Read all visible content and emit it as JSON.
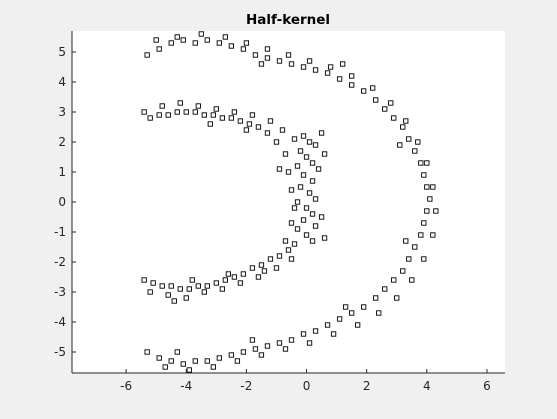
{
  "chart_data": {
    "type": "scatter",
    "title": "Half-kernel",
    "xlabel": "",
    "ylabel": "",
    "xlim": [
      -7.8,
      6.6
    ],
    "ylim": [
      -5.7,
      5.7
    ],
    "x_ticks": [
      -6,
      -4,
      -2,
      0,
      2,
      4,
      6
    ],
    "y_ticks": [
      -5,
      -4,
      -3,
      -2,
      -1,
      0,
      1,
      2,
      3,
      4,
      5
    ],
    "grid": false,
    "legend": "none",
    "marker": "square",
    "colors": {
      "figure_background": "#f0f0f0",
      "axes_background": "#ffffff",
      "axis": "#262626",
      "marker_edge": "#000000"
    },
    "series": [
      {
        "description_key": "inner-half-kernel",
        "points": [
          [
            -0.1,
            2.2
          ],
          [
            0.1,
            2.0
          ],
          [
            0.3,
            1.9
          ],
          [
            -0.4,
            2.1
          ],
          [
            0.5,
            2.3
          ],
          [
            -0.2,
            1.7
          ],
          [
            0.0,
            1.5
          ],
          [
            0.2,
            1.3
          ],
          [
            -0.3,
            1.2
          ],
          [
            0.4,
            1.1
          ],
          [
            -0.1,
            0.9
          ],
          [
            0.2,
            0.7
          ],
          [
            -0.2,
            0.5
          ],
          [
            0.1,
            0.3
          ],
          [
            0.3,
            0.1
          ],
          [
            -0.3,
            0.0
          ],
          [
            0.0,
            -0.2
          ],
          [
            0.2,
            -0.4
          ],
          [
            -0.1,
            -0.6
          ],
          [
            0.3,
            -0.8
          ],
          [
            -0.3,
            -0.9
          ],
          [
            0.0,
            -1.1
          ],
          [
            0.2,
            -1.3
          ],
          [
            -0.4,
            -1.4
          ],
          [
            -0.6,
            -1.6
          ],
          [
            -0.9,
            -1.8
          ],
          [
            -1.2,
            -1.9
          ],
          [
            -1.5,
            -2.1
          ],
          [
            -1.8,
            -2.2
          ],
          [
            -2.1,
            -2.4
          ],
          [
            -2.4,
            -2.5
          ],
          [
            -2.7,
            -2.6
          ],
          [
            -3.0,
            -2.7
          ],
          [
            -3.3,
            -2.8
          ],
          [
            -3.6,
            -2.8
          ],
          [
            -3.9,
            -2.9
          ],
          [
            -4.2,
            -2.9
          ],
          [
            -4.5,
            -2.8
          ],
          [
            -4.8,
            -2.8
          ],
          [
            -5.1,
            -2.7
          ],
          [
            -5.4,
            -2.6
          ],
          [
            -5.2,
            -3.0
          ],
          [
            -4.6,
            -3.1
          ],
          [
            -4.0,
            -3.2
          ],
          [
            -3.4,
            -3.0
          ],
          [
            -2.8,
            -2.9
          ],
          [
            -2.2,
            -2.7
          ],
          [
            -1.6,
            -2.5
          ],
          [
            -1.0,
            -2.2
          ],
          [
            -0.5,
            -1.9
          ],
          [
            -0.7,
            -1.3
          ],
          [
            -0.5,
            -0.7
          ],
          [
            -0.4,
            -0.2
          ],
          [
            -0.5,
            0.4
          ],
          [
            -0.6,
            1.0
          ],
          [
            -0.7,
            1.6
          ],
          [
            -1.0,
            2.0
          ],
          [
            -1.3,
            2.3
          ],
          [
            -1.6,
            2.5
          ],
          [
            -1.9,
            2.6
          ],
          [
            -2.2,
            2.7
          ],
          [
            -2.5,
            2.8
          ],
          [
            -2.8,
            2.8
          ],
          [
            -3.1,
            2.9
          ],
          [
            -3.4,
            2.9
          ],
          [
            -3.7,
            3.0
          ],
          [
            -4.0,
            3.0
          ],
          [
            -4.3,
            3.0
          ],
          [
            -4.6,
            2.9
          ],
          [
            -4.9,
            2.9
          ],
          [
            -5.2,
            2.8
          ],
          [
            -5.4,
            3.0
          ],
          [
            -4.8,
            3.2
          ],
          [
            -4.2,
            3.3
          ],
          [
            -3.6,
            3.2
          ],
          [
            -3.0,
            3.1
          ],
          [
            -2.4,
            3.0
          ],
          [
            -1.8,
            2.9
          ],
          [
            -1.2,
            2.7
          ],
          [
            -0.8,
            2.4
          ],
          [
            -0.9,
            1.1
          ],
          [
            0.6,
            1.6
          ],
          [
            0.5,
            -0.5
          ],
          [
            0.6,
            -1.2
          ],
          [
            -1.4,
            -2.3
          ],
          [
            -2.6,
            -2.4
          ],
          [
            -3.8,
            -2.6
          ],
          [
            -4.4,
            -3.3
          ],
          [
            -2.0,
            2.4
          ],
          [
            -3.2,
            2.6
          ]
        ]
      },
      {
        "description_key": "outer-half-kernel",
        "points": [
          [
            -5.3,
            4.9
          ],
          [
            -4.9,
            5.1
          ],
          [
            -4.5,
            5.3
          ],
          [
            -4.1,
            5.4
          ],
          [
            -3.7,
            5.3
          ],
          [
            -3.3,
            5.4
          ],
          [
            -2.9,
            5.3
          ],
          [
            -2.5,
            5.2
          ],
          [
            -2.1,
            5.1
          ],
          [
            -1.7,
            4.9
          ],
          [
            -1.3,
            4.8
          ],
          [
            -0.9,
            4.7
          ],
          [
            -0.5,
            4.6
          ],
          [
            -0.1,
            4.5
          ],
          [
            0.3,
            4.4
          ],
          [
            0.7,
            4.3
          ],
          [
            1.1,
            4.1
          ],
          [
            1.5,
            3.9
          ],
          [
            1.9,
            3.7
          ],
          [
            2.3,
            3.4
          ],
          [
            2.6,
            3.1
          ],
          [
            2.9,
            2.8
          ],
          [
            3.2,
            2.5
          ],
          [
            3.4,
            2.1
          ],
          [
            3.6,
            1.7
          ],
          [
            3.8,
            1.3
          ],
          [
            3.9,
            0.9
          ],
          [
            4.0,
            0.5
          ],
          [
            4.1,
            0.1
          ],
          [
            4.0,
            -0.3
          ],
          [
            3.9,
            -0.7
          ],
          [
            3.8,
            -1.1
          ],
          [
            3.6,
            -1.5
          ],
          [
            3.4,
            -1.9
          ],
          [
            3.2,
            -2.3
          ],
          [
            2.9,
            -2.6
          ],
          [
            2.6,
            -2.9
          ],
          [
            2.3,
            -3.2
          ],
          [
            1.9,
            -3.5
          ],
          [
            1.5,
            -3.7
          ],
          [
            1.1,
            -3.9
          ],
          [
            0.7,
            -4.1
          ],
          [
            0.3,
            -4.3
          ],
          [
            -0.1,
            -4.4
          ],
          [
            -0.5,
            -4.6
          ],
          [
            -0.9,
            -4.7
          ],
          [
            -1.3,
            -4.8
          ],
          [
            -1.7,
            -4.9
          ],
          [
            -2.1,
            -5.0
          ],
          [
            -2.5,
            -5.1
          ],
          [
            -2.9,
            -5.2
          ],
          [
            -3.3,
            -5.3
          ],
          [
            -3.7,
            -5.3
          ],
          [
            -4.1,
            -5.4
          ],
          [
            -4.5,
            -5.3
          ],
          [
            -4.9,
            -5.2
          ],
          [
            -5.3,
            -5.0
          ],
          [
            -4.7,
            -5.5
          ],
          [
            -3.9,
            -5.6
          ],
          [
            -3.1,
            -5.5
          ],
          [
            -2.3,
            -5.3
          ],
          [
            -1.5,
            -5.1
          ],
          [
            -0.7,
            -4.9
          ],
          [
            0.1,
            -4.7
          ],
          [
            0.9,
            -4.4
          ],
          [
            1.7,
            -4.1
          ],
          [
            2.4,
            -3.7
          ],
          [
            3.0,
            -3.2
          ],
          [
            3.5,
            -2.6
          ],
          [
            3.9,
            -1.9
          ],
          [
            4.2,
            -1.1
          ],
          [
            4.3,
            -0.3
          ],
          [
            4.2,
            0.5
          ],
          [
            4.0,
            1.3
          ],
          [
            3.7,
            2.0
          ],
          [
            3.3,
            2.7
          ],
          [
            2.8,
            3.3
          ],
          [
            2.2,
            3.8
          ],
          [
            1.5,
            4.2
          ],
          [
            0.8,
            4.5
          ],
          [
            0.1,
            4.7
          ],
          [
            -0.6,
            4.9
          ],
          [
            -1.3,
            5.1
          ],
          [
            -2.0,
            5.3
          ],
          [
            -2.7,
            5.5
          ],
          [
            -3.5,
            5.6
          ],
          [
            -4.3,
            5.5
          ],
          [
            -5.0,
            5.4
          ],
          [
            -1.5,
            4.6
          ],
          [
            1.2,
            4.6
          ],
          [
            3.1,
            1.9
          ],
          [
            3.3,
            -1.3
          ],
          [
            1.3,
            -3.5
          ],
          [
            -1.8,
            -4.6
          ],
          [
            -4.3,
            -5.0
          ]
        ]
      }
    ]
  }
}
